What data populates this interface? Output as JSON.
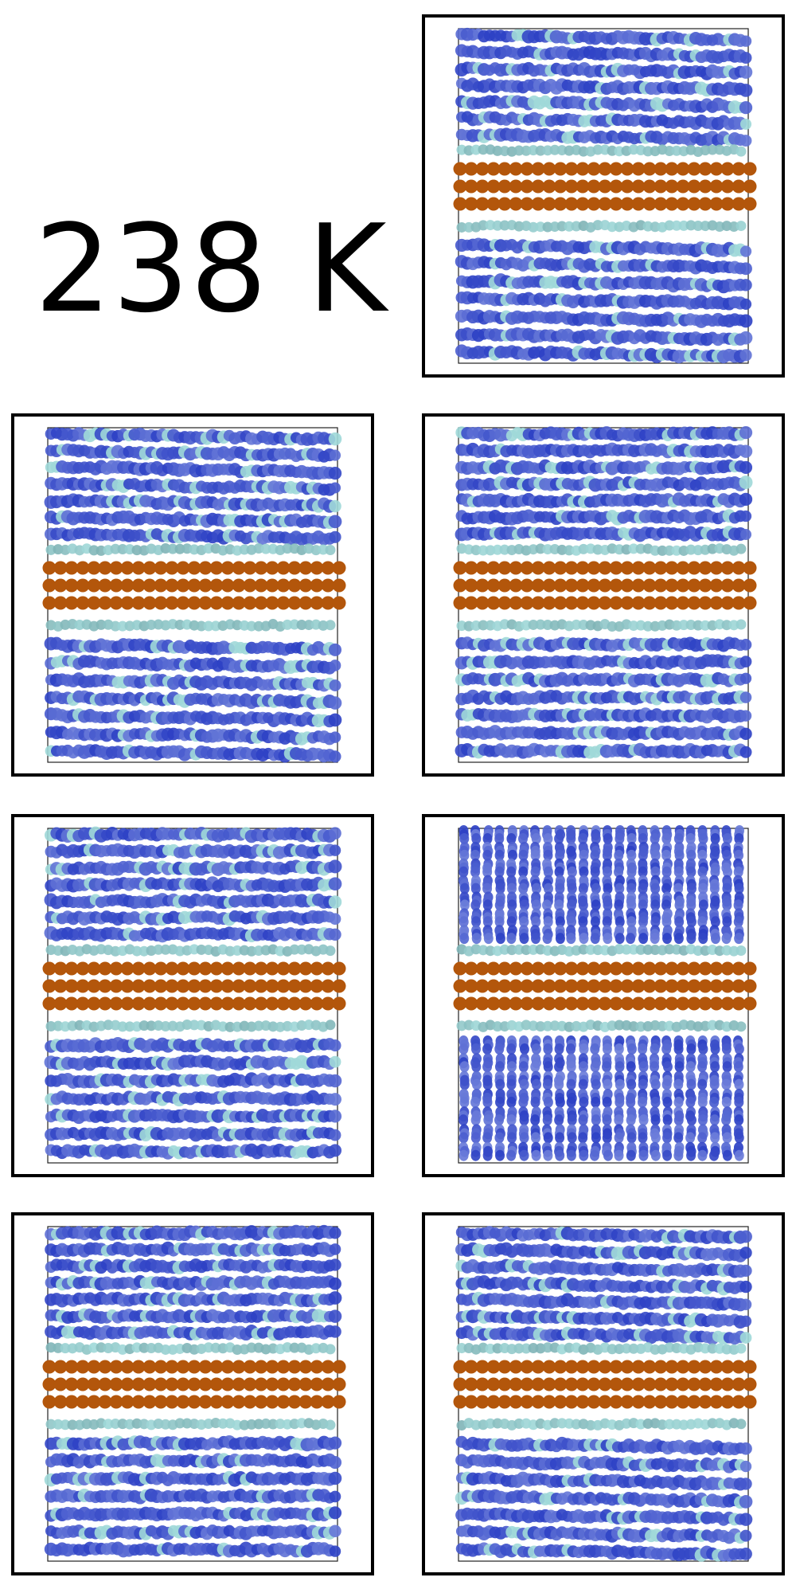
{
  "figure": {
    "temperature_label": "238 K",
    "colors": {
      "frame": "#000000",
      "surface_atoms": "#b3560b",
      "interface_molecules": "#9fd8d8",
      "bulk_molecules": "#2b3fc4",
      "bulk_molecules_light": "#7e8fe0",
      "background": "#ffffff"
    },
    "panels": [
      {
        "id": "p1",
        "bulk": "tilted",
        "disorder_top": "local"
      },
      {
        "id": "p2",
        "bulk": "tilted",
        "disorder_top": "local"
      },
      {
        "id": "p3",
        "bulk": "mixed",
        "disorder_top": "none"
      },
      {
        "id": "p4",
        "bulk": "layered",
        "disorder_top": "none"
      },
      {
        "id": "p5",
        "bulk": "columnar",
        "disorder_top": "none"
      },
      {
        "id": "p6",
        "bulk": "mixed",
        "disorder_top": "none"
      },
      {
        "id": "p7",
        "bulk": "tilted",
        "disorder_top": "wide"
      }
    ]
  }
}
